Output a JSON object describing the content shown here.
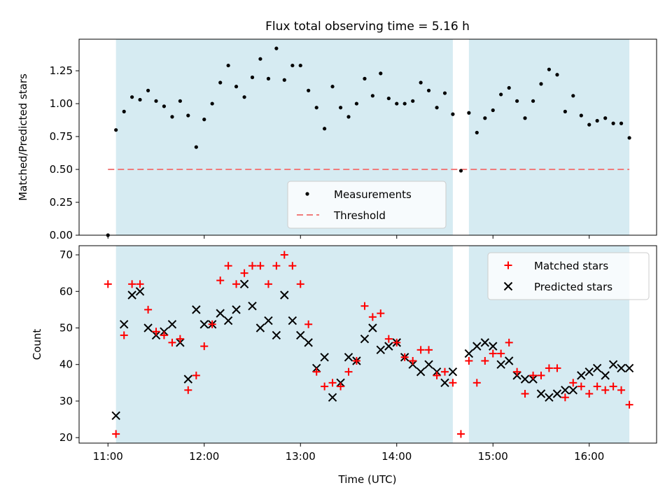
{
  "chart_data": [
    {
      "type": "scatter",
      "title": "Flux total observing time = 5.16 h",
      "xlabel": "",
      "ylabel": "Matched/Predicted stars",
      "xlim_hours": [
        10.7,
        16.7
      ],
      "ylim": [
        0,
        1.49
      ],
      "yticks": [
        0.0,
        0.25,
        0.5,
        0.75,
        1.0,
        1.25
      ],
      "ytick_labels": [
        "0.00",
        "0.25",
        "0.50",
        "0.75",
        "1.00",
        "1.25"
      ],
      "xticks_hours": [
        11,
        12,
        13,
        14,
        15,
        16
      ],
      "x_time_hours": [
        11.0,
        11.083,
        11.167,
        11.25,
        11.333,
        11.417,
        11.5,
        11.583,
        11.667,
        11.75,
        11.833,
        11.917,
        12.0,
        12.083,
        12.167,
        12.25,
        12.333,
        12.417,
        12.5,
        12.583,
        12.667,
        12.75,
        12.833,
        12.917,
        13.0,
        13.083,
        13.167,
        13.25,
        13.333,
        13.417,
        13.5,
        13.583,
        13.667,
        13.75,
        13.833,
        13.917,
        14.0,
        14.083,
        14.167,
        14.25,
        14.333,
        14.417,
        14.5,
        14.583,
        14.667,
        14.75,
        14.833,
        14.917,
        15.0,
        15.083,
        15.167,
        15.25,
        15.333,
        15.417,
        15.5,
        15.583,
        15.667,
        15.75,
        15.833,
        15.917,
        16.0,
        16.083,
        16.167,
        16.25,
        16.333,
        16.417
      ],
      "series": [
        {
          "name": "Measurements",
          "color": "#000000",
          "marker": "dot",
          "values": [
            0.0,
            0.8,
            0.94,
            1.05,
            1.03,
            1.1,
            1.02,
            0.98,
            0.9,
            1.02,
            0.91,
            0.67,
            0.88,
            1.0,
            1.16,
            1.29,
            1.13,
            1.05,
            1.2,
            1.34,
            1.19,
            1.42,
            1.18,
            1.29,
            1.29,
            1.1,
            0.97,
            0.81,
            1.13,
            0.97,
            0.9,
            1.0,
            1.19,
            1.06,
            1.23,
            1.04,
            1.0,
            1.0,
            1.02,
            1.16,
            1.1,
            0.97,
            1.08,
            0.92,
            0.49,
            0.93,
            0.78,
            0.89,
            0.95,
            1.07,
            1.12,
            1.02,
            0.89,
            1.02,
            1.15,
            1.26,
            1.22,
            0.94,
            1.06,
            0.91,
            0.84,
            0.87,
            0.89,
            0.85,
            0.85,
            0.74
          ]
        },
        {
          "name": "Threshold",
          "color": "#f07c7c",
          "style": "dashed",
          "constant": 0.5
        }
      ],
      "shaded_intervals_hours": [
        [
          11.083,
          14.583
        ],
        [
          14.75,
          16.417
        ]
      ],
      "shade_color": "#add8e6",
      "legend": [
        "Measurements",
        "Threshold"
      ],
      "legend_position": "lower-center-right"
    },
    {
      "type": "scatter",
      "title": "",
      "xlabel": "Time (UTC)",
      "ylabel": "Count",
      "xlim_hours": [
        10.7,
        16.7
      ],
      "ylim": [
        18.5,
        72.5
      ],
      "yticks": [
        20,
        30,
        40,
        50,
        60,
        70
      ],
      "ytick_labels": [
        "20",
        "30",
        "40",
        "50",
        "60",
        "70"
      ],
      "xticks_hours": [
        11,
        12,
        13,
        14,
        15,
        16
      ],
      "xtick_labels": [
        "11:00",
        "12:00",
        "13:00",
        "14:00",
        "15:00",
        "16:00"
      ],
      "x_time_hours": [
        11.0,
        11.083,
        11.167,
        11.25,
        11.333,
        11.417,
        11.5,
        11.583,
        11.667,
        11.75,
        11.833,
        11.917,
        12.0,
        12.083,
        12.167,
        12.25,
        12.333,
        12.417,
        12.5,
        12.583,
        12.667,
        12.75,
        12.833,
        12.917,
        13.0,
        13.083,
        13.167,
        13.25,
        13.333,
        13.417,
        13.5,
        13.583,
        13.667,
        13.75,
        13.833,
        13.917,
        14.0,
        14.083,
        14.167,
        14.25,
        14.333,
        14.417,
        14.5,
        14.583,
        14.667,
        14.75,
        14.833,
        14.917,
        15.0,
        15.083,
        15.167,
        15.25,
        15.333,
        15.417,
        15.5,
        15.583,
        15.667,
        15.75,
        15.833,
        15.917,
        16.0,
        16.083,
        16.167,
        16.25,
        16.333,
        16.417
      ],
      "series": [
        {
          "name": "Matched stars",
          "color": "#ff0000",
          "marker": "plus",
          "values": [
            62,
            21,
            48,
            62,
            62,
            55,
            49,
            48,
            46,
            47,
            33,
            37,
            45,
            51,
            63,
            67,
            62,
            65,
            67,
            67,
            62,
            67,
            70,
            67,
            62,
            51,
            38,
            34,
            35,
            34,
            38,
            41,
            56,
            53,
            54,
            47,
            46,
            42,
            41,
            44,
            44,
            37,
            38,
            35,
            21,
            41,
            35,
            41,
            43,
            43,
            46,
            38,
            32,
            37,
            37,
            39,
            39,
            31,
            35,
            34,
            32,
            34,
            33,
            34,
            33,
            29
          ]
        },
        {
          "name": "Predicted stars",
          "color": "#000000",
          "marker": "x",
          "values": [
            null,
            26,
            51,
            59,
            60,
            50,
            48,
            49,
            51,
            46,
            36,
            55,
            51,
            51,
            54,
            52,
            55,
            62,
            56,
            50,
            52,
            48,
            59,
            52,
            48,
            46,
            39,
            42,
            31,
            35,
            42,
            41,
            47,
            50,
            44,
            45,
            46,
            42,
            40,
            38,
            40,
            38,
            35,
            38,
            null,
            43,
            45,
            46,
            45,
            40,
            41,
            37,
            36,
            36,
            32,
            31,
            32,
            33,
            33,
            37,
            38,
            39,
            37,
            40,
            39,
            39
          ]
        }
      ],
      "shaded_intervals_hours": [
        [
          11.083,
          14.583
        ],
        [
          14.75,
          16.417
        ]
      ],
      "shade_color": "#add8e6",
      "legend": [
        "Matched stars",
        "Predicted stars"
      ],
      "legend_position": "upper-right"
    }
  ]
}
